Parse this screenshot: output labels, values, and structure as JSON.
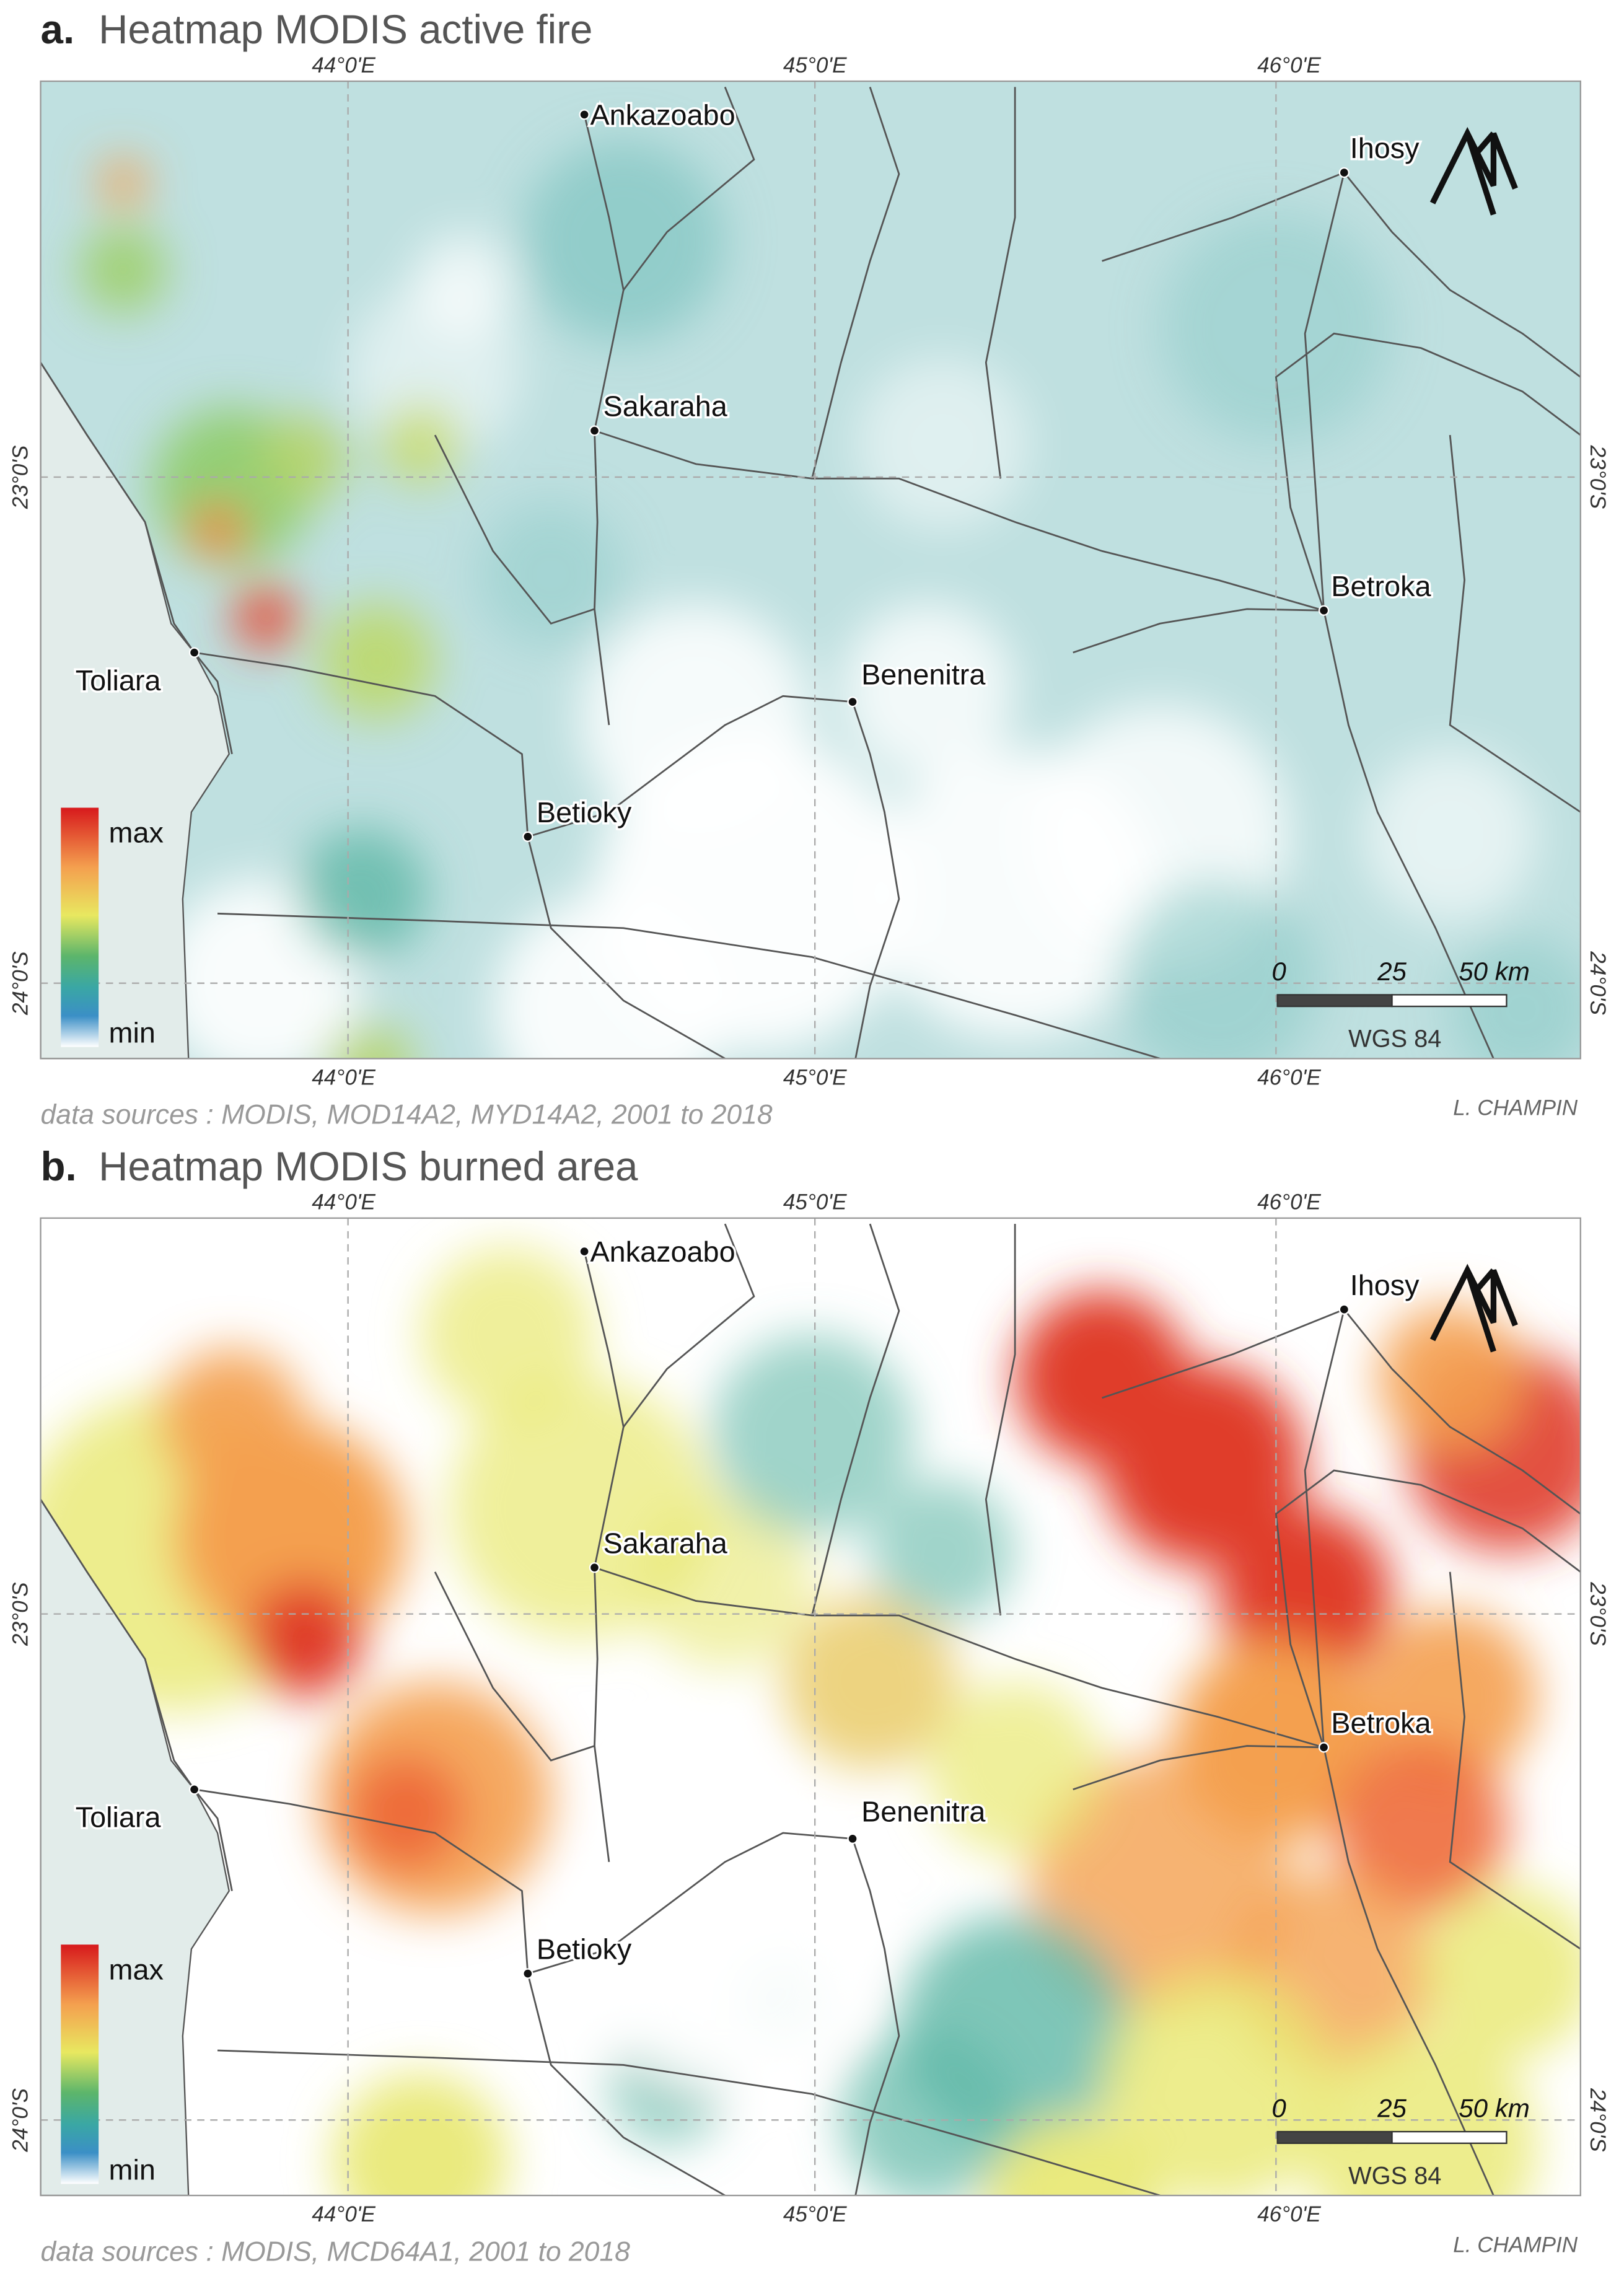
{
  "panels": [
    {
      "letter": "a.",
      "title": "Heatmap MODIS active fire",
      "lon_labels_top": [
        "44°0'E",
        "45°0'E",
        "46°0'E"
      ],
      "lon_labels_bottom": [
        "44°0'E",
        "45°0'E",
        "46°0'E"
      ],
      "lat_labels_left": [
        "23°0'S",
        "24°0'S"
      ],
      "lat_labels_right": [
        "23°0'S",
        "24°0'S"
      ],
      "places": [
        "Ankazoabo",
        "Ihosy",
        "Sakaraha",
        "Betroka",
        "Toliara",
        "Benenitra",
        "Betioky"
      ],
      "legend": {
        "max": "max",
        "min": "min"
      },
      "scale": {
        "ticks": [
          "0",
          "25",
          "50 km"
        ],
        "crs": "WGS 84"
      },
      "source": "data sources : MODIS, MOD14A2, MYD14A2, 2001 to 2018",
      "author": "L. CHAMPIN"
    },
    {
      "letter": "b.",
      "title": "Heatmap MODIS burned area",
      "lon_labels_top": [
        "44°0'E",
        "45°0'E",
        "46°0'E"
      ],
      "lon_labels_bottom": [
        "44°0'E",
        "45°0'E",
        "46°0'E"
      ],
      "lat_labels_left": [
        "23°0'S",
        "24°0'S"
      ],
      "lat_labels_right": [
        "23°0'S",
        "24°0'S"
      ],
      "places": [
        "Ankazoabo",
        "Ihosy",
        "Sakaraha",
        "Betroka",
        "Toliara",
        "Benenitra",
        "Betioky"
      ],
      "legend": {
        "max": "max",
        "min": "min"
      },
      "scale": {
        "ticks": [
          "0",
          "25",
          "50 km"
        ],
        "crs": "WGS 84"
      },
      "source": "data sources : MODIS, MCD64A1, 2001 to 2018",
      "author": "L. CHAMPIN"
    }
  ]
}
